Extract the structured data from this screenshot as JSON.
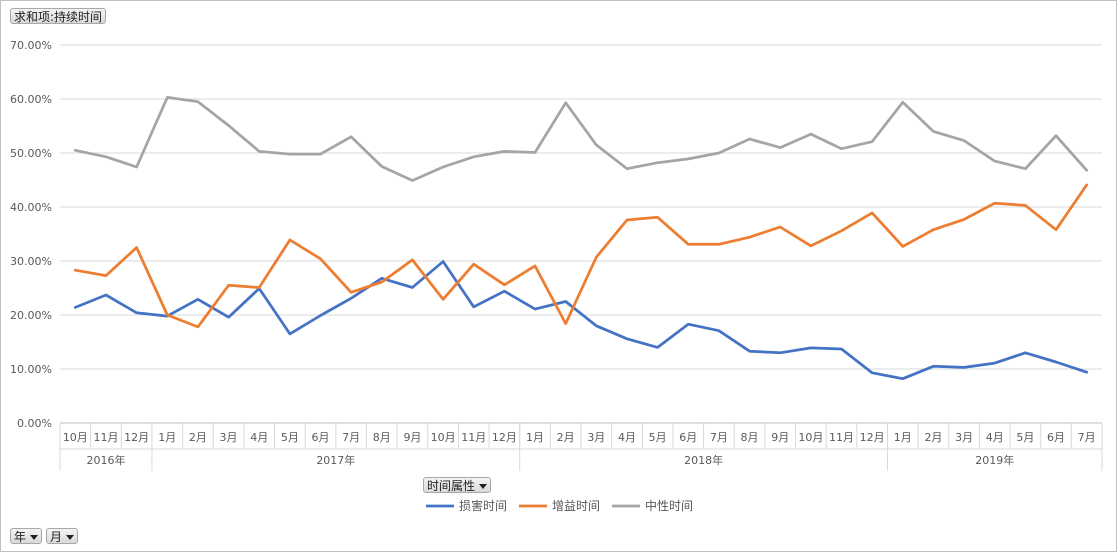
{
  "pivot": {
    "value_field": "求和项:持续时间",
    "series_field": "时间属性",
    "row_fields": [
      "年",
      "月"
    ]
  },
  "chart_data": {
    "type": "line",
    "title": "",
    "xlabel": "",
    "ylabel": "",
    "ylim": [
      0,
      70
    ],
    "y_ticks": [
      "0.00%",
      "10.00%",
      "20.00%",
      "30.00%",
      "40.00%",
      "50.00%",
      "60.00%",
      "70.00%"
    ],
    "grid": true,
    "legend_position": "bottom",
    "years": [
      {
        "label": "2016年",
        "months": [
          "10月",
          "11月",
          "12月"
        ]
      },
      {
        "label": "2017年",
        "months": [
          "1月",
          "2月",
          "3月",
          "4月",
          "5月",
          "6月",
          "7月",
          "8月",
          "9月",
          "10月",
          "11月",
          "12月"
        ]
      },
      {
        "label": "2018年",
        "months": [
          "1月",
          "2月",
          "3月",
          "4月",
          "5月",
          "6月",
          "7月",
          "8月",
          "9月",
          "10月",
          "11月",
          "12月"
        ]
      },
      {
        "label": "2019年",
        "months": [
          "1月",
          "2月",
          "3月",
          "4月",
          "5月",
          "6月",
          "7月"
        ]
      }
    ],
    "series": [
      {
        "name": "损害时间",
        "color": "#4472c4",
        "values": [
          21.4,
          23.7,
          20.4,
          19.8,
          22.9,
          19.6,
          24.9,
          16.5,
          19.9,
          23.1,
          26.8,
          25.1,
          29.9,
          21.5,
          24.4,
          21.1,
          22.5,
          18.0,
          15.6,
          14.0,
          18.3,
          17.1,
          13.3,
          13.0,
          13.9,
          13.7,
          9.3,
          8.2,
          10.5,
          10.3,
          11.1,
          13.0,
          11.3,
          9.4
        ]
      },
      {
        "name": "增益时间",
        "color": "#ed7d31",
        "values": [
          28.3,
          27.3,
          32.5,
          20.0,
          17.8,
          25.5,
          25.1,
          33.9,
          30.4,
          24.2,
          26.1,
          30.2,
          22.9,
          29.4,
          25.6,
          29.1,
          18.4,
          30.7,
          37.6,
          38.1,
          33.1,
          33.1,
          34.4,
          36.3,
          32.8,
          35.6,
          38.9,
          32.7,
          35.8,
          37.7,
          40.7,
          40.3,
          35.8,
          44.1
        ]
      },
      {
        "name": "中性时间",
        "color": "#a5a5a5",
        "values": [
          50.5,
          49.3,
          47.4,
          60.3,
          59.5,
          55.1,
          50.3,
          49.8,
          49.8,
          53.0,
          47.5,
          44.9,
          47.4,
          49.3,
          50.3,
          50.1,
          59.3,
          51.5,
          47.1,
          48.2,
          48.9,
          50.0,
          52.6,
          51.0,
          53.5,
          50.8,
          52.1,
          59.4,
          54.0,
          52.3,
          48.5,
          47.1,
          53.2,
          46.8
        ]
      }
    ]
  }
}
